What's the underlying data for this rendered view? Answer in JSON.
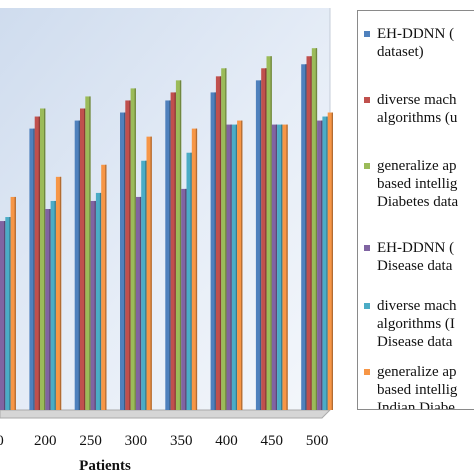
{
  "chart_data": {
    "type": "bar",
    "xlabel": "Patients",
    "categories": [
      "0",
      "200",
      "250",
      "300",
      "350",
      "400",
      "450",
      "500"
    ],
    "ylim": [
      0,
      100
    ],
    "grid": false,
    "legend_placement": "right",
    "series": [
      {
        "name": "EH-DDNN (... dataset)",
        "color": "#4f81bd",
        "values": [
          52,
          70,
          72,
          74,
          77,
          79,
          82,
          86
        ]
      },
      {
        "name": "diverse mach... algorithms (u...",
        "color": "#c0504d",
        "values": [
          58,
          73,
          75,
          77,
          79,
          83,
          85,
          88
        ]
      },
      {
        "name": "generalize ap... based intellig... Diabetes data...",
        "color": "#9bbb59",
        "values": [
          64,
          75,
          78,
          80,
          82,
          85,
          88,
          90
        ]
      },
      {
        "name": "EH-DDNN (... Disease data...",
        "color": "#8064a2",
        "values": [
          47,
          50,
          52,
          53,
          55,
          71,
          71,
          72
        ]
      },
      {
        "name": "diverse mach... algorithms (... Disease data...",
        "color": "#4bacc6",
        "values": [
          48,
          52,
          54,
          62,
          64,
          71,
          71,
          73
        ]
      },
      {
        "name": "generalize ap... based intellig... Indian Diabe...",
        "color": "#f79646",
        "values": [
          53,
          58,
          61,
          68,
          70,
          72,
          71,
          74
        ]
      }
    ]
  },
  "legend": [
    {
      "color": "#4f81bd",
      "lines": [
        "EH-DDNN (",
        "dataset)"
      ]
    },
    {
      "color": "#c0504d",
      "lines": [
        "diverse mach",
        "algorithms (u"
      ]
    },
    {
      "color": "#9bbb59",
      "lines": [
        "generalize ap",
        "based intellig",
        "Diabetes data"
      ]
    },
    {
      "color": "#8064a2",
      "lines": [
        "EH-DDNN (",
        "Disease data"
      ]
    },
    {
      "color": "#4bacc6",
      "lines": [
        "diverse mach",
        "algorithms (I",
        "Disease data"
      ]
    },
    {
      "color": "#f79646",
      "lines": [
        "generalize ap",
        "based intellig",
        "Indian Diabe"
      ]
    }
  ]
}
